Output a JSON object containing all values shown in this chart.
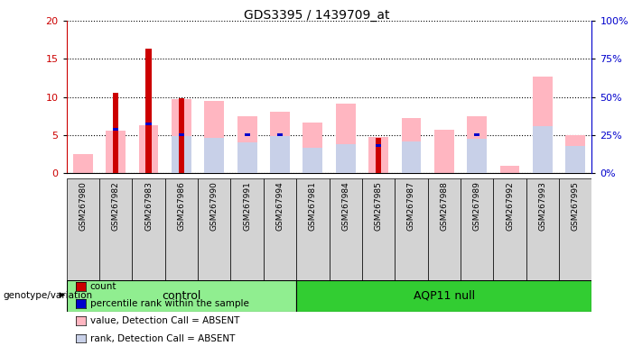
{
  "title": "GDS3395 / 1439709_at",
  "samples": [
    "GSM267980",
    "GSM267982",
    "GSM267983",
    "GSM267986",
    "GSM267990",
    "GSM267991",
    "GSM267994",
    "GSM267981",
    "GSM267984",
    "GSM267985",
    "GSM267987",
    "GSM267988",
    "GSM267989",
    "GSM267992",
    "GSM267993",
    "GSM267995"
  ],
  "count": [
    0,
    10.5,
    16.3,
    9.8,
    0,
    0,
    0,
    0,
    0,
    4.6,
    0,
    0,
    0,
    0,
    0,
    0
  ],
  "percentile": [
    0,
    5.7,
    6.4,
    5.0,
    0,
    5.0,
    5.0,
    0,
    0,
    3.6,
    0,
    0,
    5.0,
    0,
    0,
    0
  ],
  "value_absent": [
    2.5,
    5.6,
    6.3,
    9.7,
    9.5,
    7.5,
    8.1,
    6.6,
    9.1,
    4.7,
    7.2,
    5.7,
    7.5,
    1.0,
    12.7,
    5.0
  ],
  "rank_absent": [
    0,
    0,
    0,
    4.8,
    4.6,
    4.0,
    4.8,
    3.3,
    3.8,
    0,
    4.2,
    0,
    4.5,
    0,
    6.1,
    3.5
  ],
  "groups": [
    {
      "label": "control",
      "start": 0,
      "end": 7
    },
    {
      "label": "AQP11 null",
      "start": 7,
      "end": 16
    }
  ],
  "ylim_left": [
    0,
    20
  ],
  "ylim_right": [
    0,
    100
  ],
  "yticks_left": [
    0,
    5,
    10,
    15,
    20
  ],
  "yticks_right": [
    0,
    25,
    50,
    75,
    100
  ],
  "ylabel_left_color": "#cc0000",
  "ylabel_right_color": "#0000cc",
  "bg_color": "#d3d3d3",
  "plot_bg_color": "#ffffff",
  "group_bg_color_control": "#90ee90",
  "group_bg_color_aqp": "#32cd32",
  "legend": [
    {
      "label": "count",
      "color": "#cc0000"
    },
    {
      "label": "percentile rank within the sample",
      "color": "#0000cc"
    },
    {
      "label": "value, Detection Call = ABSENT",
      "color": "#ffb6c1"
    },
    {
      "label": "rank, Detection Call = ABSENT",
      "color": "#c8d0e8"
    }
  ]
}
